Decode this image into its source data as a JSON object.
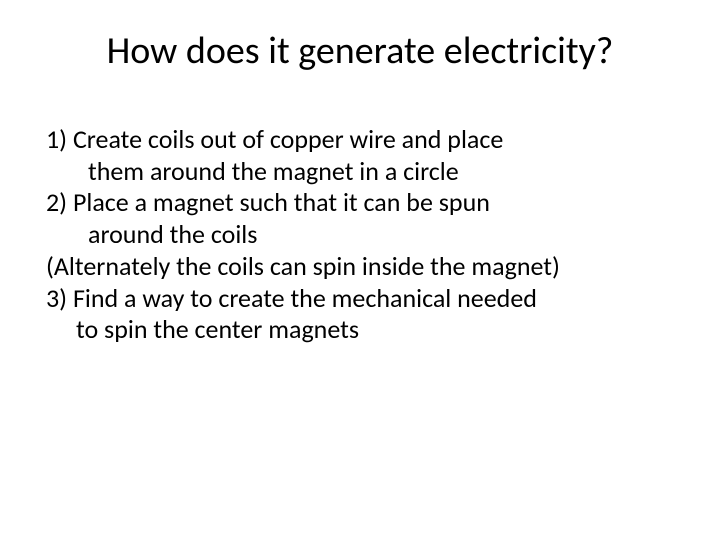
{
  "title": "How does it generate electricity?",
  "lines": {
    "l1": "1)  Create coils out of copper wire and place",
    "l2": "them around the magnet in a circle",
    "l3": "2)  Place a magnet such that it can be spun",
    "l4": "around the coils",
    "l5": "(Alternately the coils can spin inside the magnet)",
    "l6": "3)   Find a way to create the mechanical needed",
    "l7": "to spin the center magnets"
  },
  "colors": {
    "text": "#000000",
    "background": "#ffffff"
  },
  "typography": {
    "title_fontsize_pt": 38,
    "body_fontsize_pt": 26,
    "font_family": "Calibri"
  }
}
